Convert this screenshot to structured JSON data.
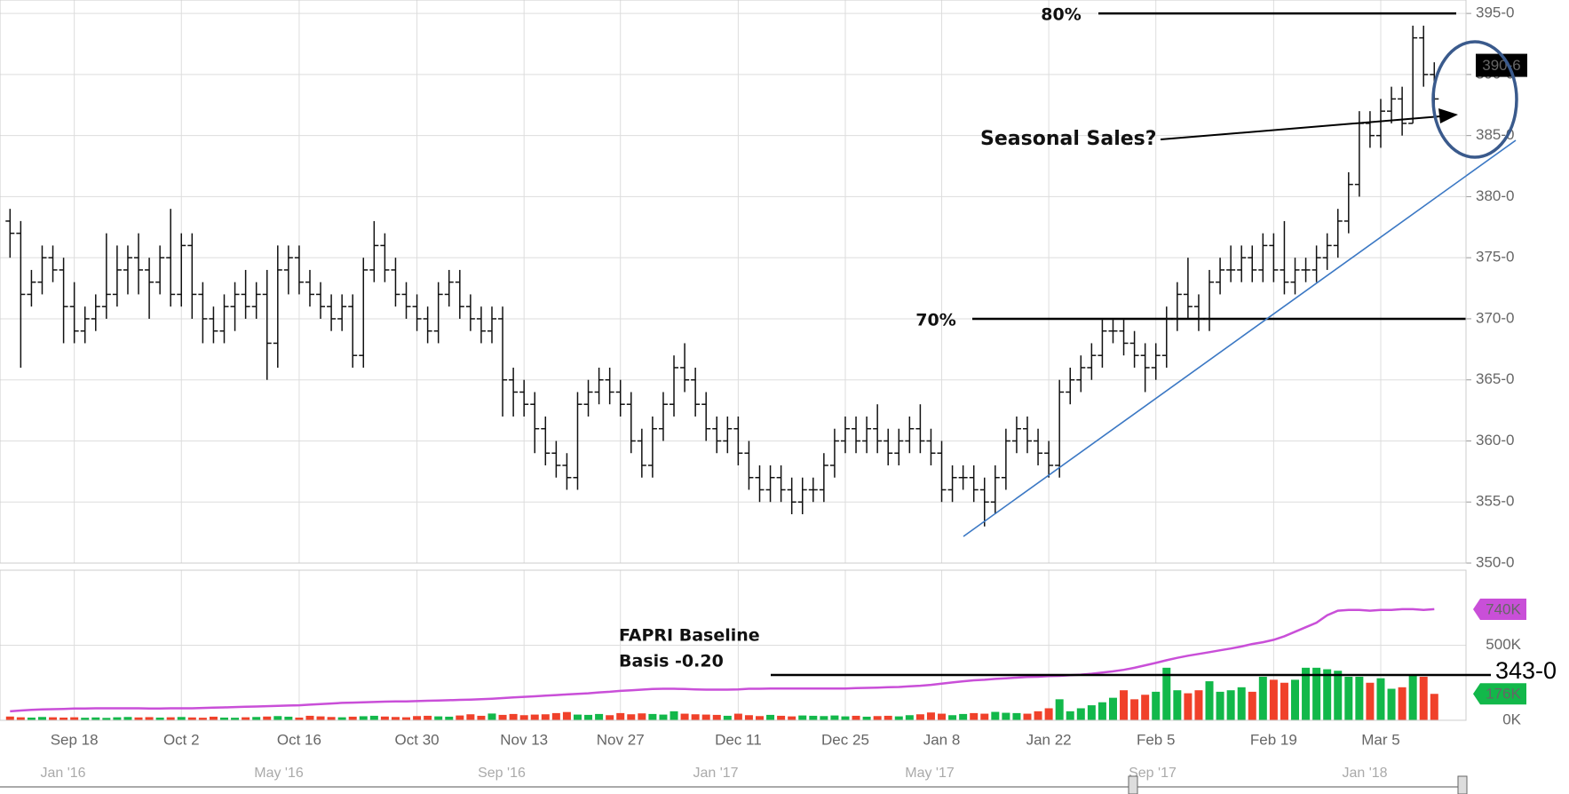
{
  "chart_data": {
    "type": "ohlc",
    "categories": [
      null,
      null,
      null,
      null,
      null,
      null,
      "Sep 18",
      null,
      null,
      null,
      null,
      null,
      null,
      null,
      null,
      null,
      "Oct 2",
      null,
      null,
      null,
      null,
      null,
      null,
      null,
      null,
      null,
      null,
      "Oct 16",
      null,
      null,
      null,
      null,
      null,
      null,
      null,
      null,
      null,
      null,
      "Oct 30",
      null,
      null,
      null,
      null,
      null,
      null,
      null,
      null,
      null,
      "Nov 13",
      null,
      null,
      null,
      null,
      null,
      null,
      null,
      null,
      "Nov 27",
      null,
      null,
      null,
      null,
      null,
      null,
      null,
      null,
      null,
      null,
      "Dec 11",
      null,
      null,
      null,
      null,
      null,
      null,
      null,
      null,
      null,
      "Dec 25",
      null,
      null,
      null,
      null,
      null,
      null,
      null,
      null,
      "Jan 8",
      null,
      null,
      null,
      null,
      null,
      null,
      null,
      null,
      null,
      "Jan 22",
      null,
      null,
      null,
      null,
      null,
      null,
      null,
      null,
      null,
      "Feb 5",
      null,
      null,
      null,
      null,
      null,
      null,
      null,
      null,
      null,
      null,
      "Feb 19",
      null,
      null,
      null,
      null,
      null,
      null,
      null,
      null,
      null,
      "Mar 5",
      null,
      null,
      null,
      null,
      null
    ],
    "open": [
      378,
      377,
      372,
      373,
      375,
      374,
      371,
      369,
      370,
      371,
      372,
      374,
      375,
      374,
      373,
      375,
      372,
      376,
      372,
      370,
      369,
      371,
      372,
      371,
      372,
      368,
      374,
      375,
      373,
      372,
      371,
      370,
      371,
      367,
      374,
      376,
      374,
      372,
      371,
      370,
      369,
      372,
      373,
      371,
      370,
      369,
      370,
      365,
      364,
      363,
      361,
      359,
      358,
      357,
      363,
      364,
      365,
      364,
      363,
      360,
      358,
      361,
      363,
      366,
      365,
      363,
      361,
      360,
      361,
      359,
      357,
      356,
      357,
      356,
      355,
      356,
      356,
      358,
      360,
      361,
      360,
      361,
      360,
      359,
      360,
      361,
      360,
      359,
      356,
      357,
      357,
      356,
      355,
      357,
      360,
      361,
      360,
      359,
      358,
      364,
      365,
      366,
      367,
      369,
      369,
      368,
      367,
      366,
      367,
      370,
      372,
      371,
      370,
      373,
      374,
      374,
      375,
      374,
      376,
      374,
      373,
      374,
      374,
      375,
      376,
      378,
      381,
      386,
      385,
      387,
      388,
      386,
      393,
      390
    ],
    "high": [
      379,
      378,
      374,
      376,
      376,
      375,
      373,
      371,
      372,
      377,
      376,
      376,
      377,
      375,
      376,
      379,
      377,
      377,
      373,
      371,
      372,
      373,
      374,
      373,
      374,
      376,
      376,
      376,
      374,
      373,
      372,
      372,
      372,
      375,
      378,
      377,
      375,
      373,
      372,
      371,
      373,
      374,
      374,
      372,
      371,
      371,
      371,
      366,
      365,
      364,
      362,
      360,
      359,
      364,
      365,
      366,
      366,
      365,
      364,
      361,
      362,
      364,
      367,
      368,
      366,
      364,
      362,
      362,
      362,
      360,
      358,
      358,
      358,
      357,
      357,
      357,
      359,
      361,
      362,
      362,
      362,
      363,
      361,
      361,
      362,
      363,
      361,
      360,
      358,
      358,
      358,
      357,
      358,
      361,
      362,
      362,
      361,
      360,
      365,
      366,
      367,
      368,
      370,
      370,
      370,
      369,
      368,
      368,
      371,
      373,
      375,
      372,
      374,
      375,
      376,
      376,
      376,
      377,
      377,
      378,
      375,
      375,
      376,
      377,
      379,
      382,
      387,
      387,
      388,
      389,
      389,
      394,
      394,
      391
    ],
    "low": [
      375,
      366,
      371,
      372,
      373,
      368,
      368,
      368,
      369,
      370,
      371,
      372,
      372,
      370,
      372,
      371,
      371,
      370,
      368,
      368,
      368,
      369,
      370,
      370,
      365,
      366,
      372,
      372,
      371,
      370,
      369,
      369,
      366,
      366,
      373,
      373,
      371,
      370,
      369,
      368,
      368,
      371,
      370,
      369,
      368,
      368,
      362,
      362,
      362,
      359,
      358,
      357,
      356,
      356,
      362,
      363,
      363,
      362,
      359,
      357,
      357,
      360,
      362,
      364,
      362,
      360,
      359,
      359,
      358,
      356,
      355,
      355,
      355,
      354,
      354,
      355,
      355,
      357,
      359,
      359,
      359,
      359,
      358,
      358,
      359,
      359,
      358,
      355,
      355,
      356,
      355,
      353,
      354,
      356,
      359,
      359,
      358,
      357,
      357,
      363,
      364,
      365,
      366,
      368,
      367,
      366,
      364,
      365,
      366,
      369,
      370,
      369,
      369,
      372,
      373,
      373,
      373,
      373,
      373,
      372,
      372,
      373,
      373,
      374,
      375,
      377,
      380,
      384,
      384,
      386,
      385,
      386,
      389,
      387
    ],
    "close": [
      377,
      372,
      373,
      375,
      374,
      371,
      369,
      370,
      371,
      372,
      374,
      375,
      374,
      373,
      375,
      372,
      376,
      372,
      370,
      369,
      371,
      372,
      371,
      372,
      368,
      374,
      375,
      373,
      372,
      371,
      370,
      371,
      367,
      374,
      376,
      374,
      372,
      371,
      370,
      369,
      372,
      373,
      371,
      370,
      369,
      370,
      365,
      364,
      363,
      361,
      359,
      358,
      357,
      363,
      364,
      365,
      364,
      363,
      360,
      358,
      361,
      363,
      366,
      365,
      363,
      361,
      360,
      361,
      359,
      357,
      356,
      357,
      356,
      355,
      356,
      356,
      358,
      360,
      361,
      360,
      361,
      360,
      359,
      360,
      361,
      360,
      359,
      356,
      357,
      357,
      356,
      355,
      357,
      360,
      361,
      360,
      359,
      358,
      364,
      365,
      366,
      367,
      369,
      369,
      368,
      367,
      366,
      367,
      370,
      372,
      371,
      370,
      373,
      374,
      374,
      375,
      374,
      376,
      374,
      373,
      374,
      374,
      375,
      376,
      378,
      381,
      386,
      385,
      387,
      388,
      386,
      393,
      390,
      388
    ],
    "color": "#111111",
    "ylim": [
      350,
      396.1
    ],
    "yticks": [
      {
        "value": 350,
        "label": "350-0"
      },
      {
        "value": 355,
        "label": "355-0"
      },
      {
        "value": 360,
        "label": "360-0"
      },
      {
        "value": 365,
        "label": "365-0"
      },
      {
        "value": 370,
        "label": "370-0"
      },
      {
        "value": 375,
        "label": "375-0"
      },
      {
        "value": 380,
        "label": "380-0"
      },
      {
        "value": 385,
        "label": "385-0"
      },
      {
        "value": 390,
        "label": "390-0"
      },
      {
        "value": 395,
        "label": "395-0"
      }
    ],
    "grid": true,
    "last_price": {
      "value": 390.75,
      "label": "390-6"
    },
    "levels": [
      {
        "label": "80%",
        "value": 395
      },
      {
        "label": "70%",
        "value": 370
      }
    ],
    "annotations": [
      "Seasonal Sales?",
      "FAPRI Baseline",
      "Basis -0.20",
      "343-0"
    ],
    "volume": {
      "up_color": "#12b84a",
      "down_color": "#f0412a",
      "last_label": "176K",
      "values": [
        25000,
        20000,
        18000,
        22000,
        20000,
        18000,
        20000,
        17000,
        19000,
        16000,
        20000,
        22000,
        19000,
        21000,
        18000,
        20000,
        22000,
        19000,
        17000,
        24000,
        18000,
        17000,
        20000,
        22000,
        25000,
        28000,
        24000,
        18000,
        30000,
        26000,
        22000,
        20000,
        24000,
        27000,
        30000,
        25000,
        22000,
        20000,
        28000,
        30000,
        26000,
        24000,
        32000,
        40000,
        30000,
        45000,
        36000,
        42000,
        34000,
        38000,
        40000,
        48000,
        55000,
        38000,
        36000,
        42000,
        34000,
        48000,
        40000,
        46000,
        42000,
        38000,
        60000,
        44000,
        40000,
        38000,
        36000,
        30000,
        44000,
        34000,
        28000,
        36000,
        30000,
        26000,
        32000,
        30000,
        28000,
        32000,
        26000,
        30000,
        24000,
        28000,
        30000,
        26000,
        34000,
        40000,
        52000,
        44000,
        34000,
        42000,
        48000,
        44000,
        56000,
        50000,
        48000,
        44000,
        60000,
        80000,
        140000,
        60000,
        80000,
        100000,
        120000,
        150000,
        200000,
        140000,
        170000,
        190000,
        350000,
        200000,
        180000,
        200000,
        260000,
        190000,
        200000,
        220000,
        190000,
        290000,
        270000,
        250000,
        270000,
        350000,
        350000,
        340000,
        330000,
        290000,
        290000,
        250000,
        280000,
        210000,
        220000,
        300000,
        290000,
        176000
      ]
    },
    "open_interest": {
      "color": "#c94fd8",
      "last_label": "740K",
      "values": [
        60000,
        65000,
        70000,
        72000,
        74000,
        76000,
        78000,
        78000,
        80000,
        80000,
        80000,
        80000,
        80000,
        78000,
        78000,
        80000,
        80000,
        80000,
        82000,
        84000,
        86000,
        88000,
        90000,
        92000,
        94000,
        96000,
        98000,
        100000,
        104000,
        108000,
        112000,
        116000,
        118000,
        120000,
        122000,
        124000,
        126000,
        126000,
        128000,
        130000,
        132000,
        134000,
        136000,
        138000,
        140000,
        144000,
        148000,
        152000,
        156000,
        160000,
        164000,
        168000,
        172000,
        176000,
        180000,
        186000,
        190000,
        196000,
        200000,
        204000,
        208000,
        210000,
        210000,
        208000,
        206000,
        204000,
        204000,
        204000,
        206000,
        210000,
        210000,
        212000,
        212000,
        212000,
        212000,
        212000,
        212000,
        212000,
        212000,
        214000,
        216000,
        218000,
        220000,
        222000,
        226000,
        230000,
        236000,
        244000,
        252000,
        260000,
        266000,
        270000,
        276000,
        280000,
        284000,
        288000,
        290000,
        294000,
        296000,
        300000,
        304000,
        310000,
        318000,
        326000,
        336000,
        350000,
        366000,
        382000,
        400000,
        416000,
        430000,
        442000,
        454000,
        466000,
        478000,
        492000,
        508000,
        520000,
        536000,
        560000,
        590000,
        620000,
        650000,
        700000,
        730000,
        735000,
        735000,
        730000,
        735000,
        735000,
        740000,
        740000,
        735000,
        740000
      ]
    },
    "y2lim": [
      0,
      1000000
    ],
    "y2ticks": [
      {
        "value": 0,
        "label": "0K"
      },
      {
        "value": 500000,
        "label": "500K"
      }
    ],
    "navigator": [
      "Jan '16",
      "May '16",
      "Sep '16",
      "Jan '17",
      "May '17",
      "Sep '17",
      "Jan '18"
    ]
  }
}
